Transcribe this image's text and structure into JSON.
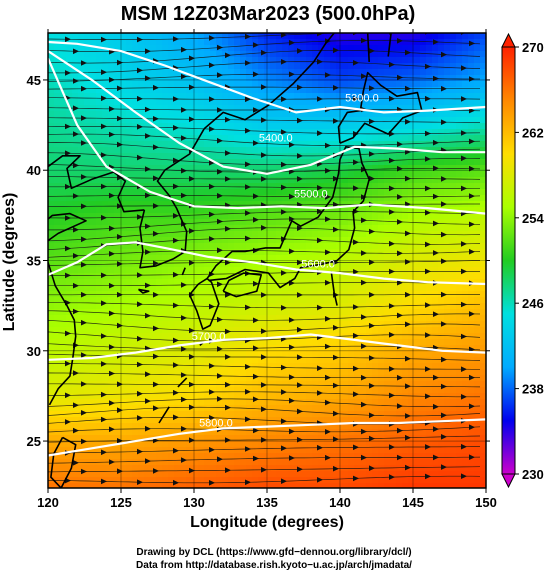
{
  "chart_data": {
    "type": "heatmap",
    "title": "MSM 12Z03Mar2023 (500.0hPa)",
    "xlabel": "Longitude (degrees)",
    "ylabel": "Latitude  (degrees)",
    "xlim": [
      120,
      150
    ],
    "ylim": [
      22.4,
      47.6
    ],
    "xticks": [
      120,
      125,
      130,
      135,
      140,
      145,
      150
    ],
    "xtick_labels": [
      "120",
      "125",
      "130",
      "135",
      "140",
      "145",
      "150"
    ],
    "yticks": [
      25,
      30,
      35,
      40,
      45
    ],
    "ytick_labels": [
      "25",
      "30",
      "35",
      "40",
      "45"
    ],
    "grid": true,
    "colorbar": {
      "range": [
        230,
        270
      ],
      "ticks": [
        230,
        238,
        246,
        254,
        262,
        270
      ],
      "tick_labels": [
        "230",
        "238",
        "246",
        "254",
        "262",
        "270"
      ],
      "colors": [
        "#cc00cc",
        "#0000ee",
        "#00aaff",
        "#00e0e0",
        "#22cc22",
        "#aaff00",
        "#ffdd00",
        "#ff8800",
        "#ff2200"
      ]
    },
    "temperature_field": {
      "description_units": "K",
      "lon": [
        120,
        125,
        130,
        135,
        140,
        145,
        150
      ],
      "lat": [
        47.6,
        45,
        42.5,
        40,
        37.5,
        35,
        32.5,
        30,
        27.5,
        25,
        22.4
      ],
      "values": [
        [
          245,
          243,
          240,
          236,
          234,
          234,
          237
        ],
        [
          246,
          244,
          242,
          239,
          237,
          238,
          240
        ],
        [
          247,
          246,
          245,
          243,
          243,
          244,
          246
        ],
        [
          248,
          248,
          248,
          248,
          249,
          251,
          252
        ],
        [
          250,
          251,
          251,
          252,
          253,
          255,
          256
        ],
        [
          252,
          253,
          254,
          255,
          256,
          258,
          259
        ],
        [
          254,
          255,
          256,
          257,
          258,
          260,
          262
        ],
        [
          256,
          257,
          258,
          260,
          261,
          263,
          264
        ],
        [
          258,
          259,
          260,
          262,
          263,
          265,
          266
        ],
        [
          263,
          263,
          264,
          265,
          266,
          267,
          268
        ],
        [
          266,
          266,
          267,
          268,
          268,
          269,
          269
        ]
      ]
    },
    "contours": [
      {
        "label": "5300.0",
        "lon": [
          120,
          122,
          125,
          128,
          131,
          134,
          137,
          140,
          143,
          146,
          150
        ],
        "lat": [
          47.1,
          47.0,
          46.6,
          45.8,
          44.9,
          44.0,
          43.2,
          43.5,
          43.2,
          43.3,
          43.5
        ],
        "label_lon": 141.5,
        "label_lat": 43.8
      },
      {
        "label": "5400.0",
        "lon": [
          120,
          123,
          126,
          129,
          132,
          135,
          138,
          141,
          144,
          147,
          150
        ],
        "lat": [
          46.6,
          45.0,
          43.2,
          41.5,
          40.2,
          39.8,
          40.3,
          41.3,
          41.2,
          41.0,
          41.0
        ],
        "label_lon": 135.6,
        "label_lat": 41.6
      },
      {
        "label": "5500.0",
        "lon": [
          120,
          122,
          124,
          127,
          130,
          133,
          136,
          139,
          142,
          146,
          150
        ],
        "lat": [
          46.2,
          42.5,
          40.2,
          38.8,
          38.0,
          37.9,
          38.0,
          37.9,
          38.1,
          37.9,
          37.6
        ],
        "label_lon": 138.0,
        "label_lat": 38.5
      },
      {
        "label": "5600.0",
        "lon": [
          120,
          122,
          124,
          126,
          128,
          131,
          134,
          137,
          140,
          143,
          146,
          150
        ],
        "lat": [
          34.2,
          34.9,
          35.9,
          36.0,
          35.7,
          35.2,
          34.9,
          34.5,
          34.3,
          34.0,
          33.8,
          33.7
        ],
        "label_lon": 138.5,
        "label_lat": 34.6
      },
      {
        "label": "5700.0",
        "lon": [
          120,
          123,
          126,
          129,
          132,
          135,
          138,
          141,
          144,
          147,
          150
        ],
        "lat": [
          29.5,
          29.6,
          29.9,
          30.3,
          30.6,
          30.7,
          30.9,
          30.6,
          30.3,
          30.0,
          29.9
        ],
        "label_lon": 131.0,
        "label_lat": 30.6
      },
      {
        "label": "5800.0",
        "lon": [
          120,
          123,
          126,
          129,
          132,
          135,
          138,
          141,
          144,
          147,
          150
        ],
        "lat": [
          24.2,
          24.6,
          25.0,
          25.4,
          25.7,
          25.8,
          25.9,
          26.0,
          26.0,
          26.1,
          26.2
        ],
        "label_lon": 131.5,
        "label_lat": 25.8
      }
    ],
    "wind": {
      "description": "streamlines, mostly westerly, stronger toward the north",
      "base_direction_deg_from_east": 0,
      "curl_amplitude_deg": 12
    }
  },
  "footer": {
    "line1": "Drawing by DCL (https://www.gfd−dennou.org/library/dcl/)",
    "line2": "Data from http://database.rish.kyoto−u.ac.jp/arch/jmadata/"
  }
}
